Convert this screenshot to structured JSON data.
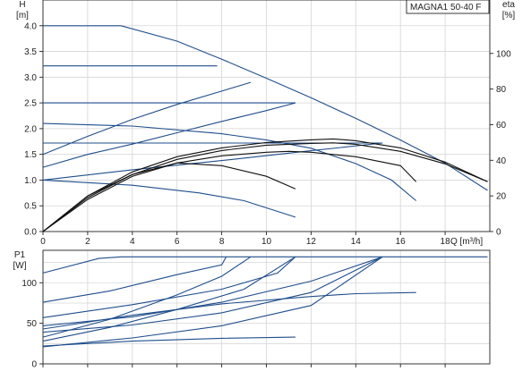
{
  "chart_data": [
    {
      "type": "line",
      "title": "MAGNA1 50-40 F",
      "ylabel": "H",
      "yunit": "[m]",
      "y2label": "eta",
      "y2unit": "[%]",
      "xlabel": "Q [m³/h]",
      "xlim": [
        0,
        20
      ],
      "ylim": [
        0,
        4.5
      ],
      "y2lim": [
        0,
        130
      ],
      "xticks": [
        "0",
        "2",
        "4",
        "6",
        "8",
        "10",
        "12",
        "14",
        "16",
        "18"
      ],
      "yticks": [
        "0.0",
        "0.5",
        "1.0",
        "1.5",
        "2.0",
        "2.5",
        "3.0",
        "3.5",
        "4.0"
      ],
      "y2ticks": [
        "0",
        "20",
        "40",
        "60",
        "80",
        "100"
      ],
      "grid": true,
      "head_curves": [
        {
          "points": [
            [
              0,
              4.0
            ],
            [
              3.5,
              4.0
            ],
            [
              6,
              3.7
            ],
            [
              8,
              3.35
            ],
            [
              10,
              2.98
            ],
            [
              12,
              2.6
            ],
            [
              14,
              2.2
            ],
            [
              16,
              1.78
            ],
            [
              18,
              1.33
            ],
            [
              19.9,
              0.8
            ]
          ]
        },
        {
          "points": [
            [
              0,
              3.22
            ],
            [
              7.8,
              3.22
            ]
          ]
        },
        {
          "points": [
            [
              0,
              2.5
            ],
            [
              11.3,
              2.5
            ]
          ]
        },
        {
          "points": [
            [
              0,
              1.72
            ],
            [
              15.2,
              1.72
            ]
          ]
        },
        {
          "points": [
            [
              0,
              1.5
            ],
            [
              2,
              1.85
            ],
            [
              4,
              2.18
            ],
            [
              6,
              2.47
            ],
            [
              8,
              2.73
            ],
            [
              9.3,
              2.9
            ]
          ]
        },
        {
          "points": [
            [
              0,
              1.25
            ],
            [
              2,
              1.5
            ],
            [
              4,
              1.7
            ],
            [
              6,
              1.92
            ],
            [
              8,
              2.14
            ],
            [
              10,
              2.35
            ],
            [
              11.3,
              2.5
            ]
          ]
        },
        {
          "points": [
            [
              0,
              1.0
            ],
            [
              4,
              1.2
            ],
            [
              8,
              1.38
            ],
            [
              12,
              1.57
            ],
            [
              15.2,
              1.72
            ]
          ]
        },
        {
          "points": [
            [
              0,
              2.1
            ],
            [
              4,
              2.05
            ],
            [
              8,
              1.9
            ],
            [
              10,
              1.78
            ],
            [
              12,
              1.62
            ],
            [
              14,
              1.32
            ],
            [
              15.6,
              1.0
            ],
            [
              16.7,
              0.6
            ]
          ]
        },
        {
          "points": [
            [
              0,
              1.0
            ],
            [
              4,
              0.9
            ],
            [
              7,
              0.75
            ],
            [
              9,
              0.6
            ],
            [
              11.3,
              0.28
            ]
          ]
        }
      ],
      "efficiency_curves": [
        {
          "points": [
            [
              0,
              0
            ],
            [
              2,
              19
            ],
            [
              4,
              32
            ],
            [
              6,
              40.5
            ],
            [
              8,
              45.5
            ],
            [
              10,
              48.5
            ],
            [
              12,
              49.5
            ],
            [
              13,
              49.8
            ],
            [
              14,
              49
            ],
            [
              16,
              45
            ],
            [
              18,
              38
            ],
            [
              19.9,
              28
            ]
          ]
        },
        {
          "points": [
            [
              0,
              0
            ],
            [
              2,
              20
            ],
            [
              4,
              33.5
            ],
            [
              6,
              42
            ],
            [
              8,
              47
            ],
            [
              10,
              50
            ],
            [
              12,
              51.5
            ],
            [
              13,
              52
            ],
            [
              14,
              51
            ],
            [
              16,
              47
            ],
            [
              18,
              39
            ],
            [
              19.9,
              28
            ]
          ]
        },
        {
          "points": [
            [
              0,
              0
            ],
            [
              2,
              18
            ],
            [
              4,
              31
            ],
            [
              6,
              38.5
            ],
            [
              8,
              42.5
            ],
            [
              10,
              44.5
            ],
            [
              11,
              45
            ],
            [
              12,
              44.5
            ],
            [
              14,
              42
            ],
            [
              16,
              37
            ],
            [
              16.7,
              28
            ]
          ]
        },
        {
          "points": [
            [
              0,
              0
            ],
            [
              2,
              20
            ],
            [
              4,
              32
            ],
            [
              6,
              38.5
            ],
            [
              8,
              37
            ],
            [
              10,
              31
            ],
            [
              11.3,
              24
            ]
          ]
        }
      ]
    },
    {
      "type": "line",
      "ylabel": "P1",
      "yunit": "[W]",
      "xlim": [
        0,
        20
      ],
      "ylim": [
        0,
        140
      ],
      "yticks": [
        "0",
        "50",
        "100"
      ],
      "grid": true,
      "power_curves": [
        {
          "points": [
            [
              0,
              112
            ],
            [
              2.5,
              130
            ],
            [
              3.5,
              132
            ],
            [
              19.9,
              132
            ]
          ]
        },
        {
          "points": [
            [
              0,
              76
            ],
            [
              3,
              90
            ],
            [
              6,
              110
            ],
            [
              8,
              122
            ],
            [
              8.2,
              132
            ]
          ]
        },
        {
          "points": [
            [
              0,
              57
            ],
            [
              4,
              73
            ],
            [
              8,
              92
            ],
            [
              10.5,
              112
            ],
            [
              11.3,
              132
            ]
          ]
        },
        {
          "points": [
            [
              0,
              47
            ],
            [
              4,
              58
            ],
            [
              8,
              76
            ],
            [
              12,
              102
            ],
            [
              15.2,
              132
            ]
          ]
        },
        {
          "points": [
            [
              0,
              39
            ],
            [
              4,
              48
            ],
            [
              8,
              63
            ],
            [
              12,
              88
            ],
            [
              15.2,
              132
            ]
          ]
        },
        {
          "points": [
            [
              0,
              33
            ],
            [
              3,
              55
            ],
            [
              6,
              85
            ],
            [
              8,
              108
            ],
            [
              9.3,
              132
            ]
          ]
        },
        {
          "points": [
            [
              0,
              28
            ],
            [
              3,
              45
            ],
            [
              6,
              67
            ],
            [
              9,
              92
            ],
            [
              11.3,
              132
            ]
          ]
        },
        {
          "points": [
            [
              0,
              21
            ],
            [
              4,
              32
            ],
            [
              8,
              47
            ],
            [
              12,
              72
            ],
            [
              15.2,
              132
            ]
          ]
        },
        {
          "points": [
            [
              0,
              43
            ],
            [
              4,
              60
            ],
            [
              8,
              74
            ],
            [
              12,
              83
            ],
            [
              14,
              86.5
            ],
            [
              16.7,
              88
            ]
          ]
        },
        {
          "points": [
            [
              0,
              22
            ],
            [
              4,
              28
            ],
            [
              8,
              31.5
            ],
            [
              11.3,
              33
            ]
          ]
        }
      ]
    }
  ]
}
